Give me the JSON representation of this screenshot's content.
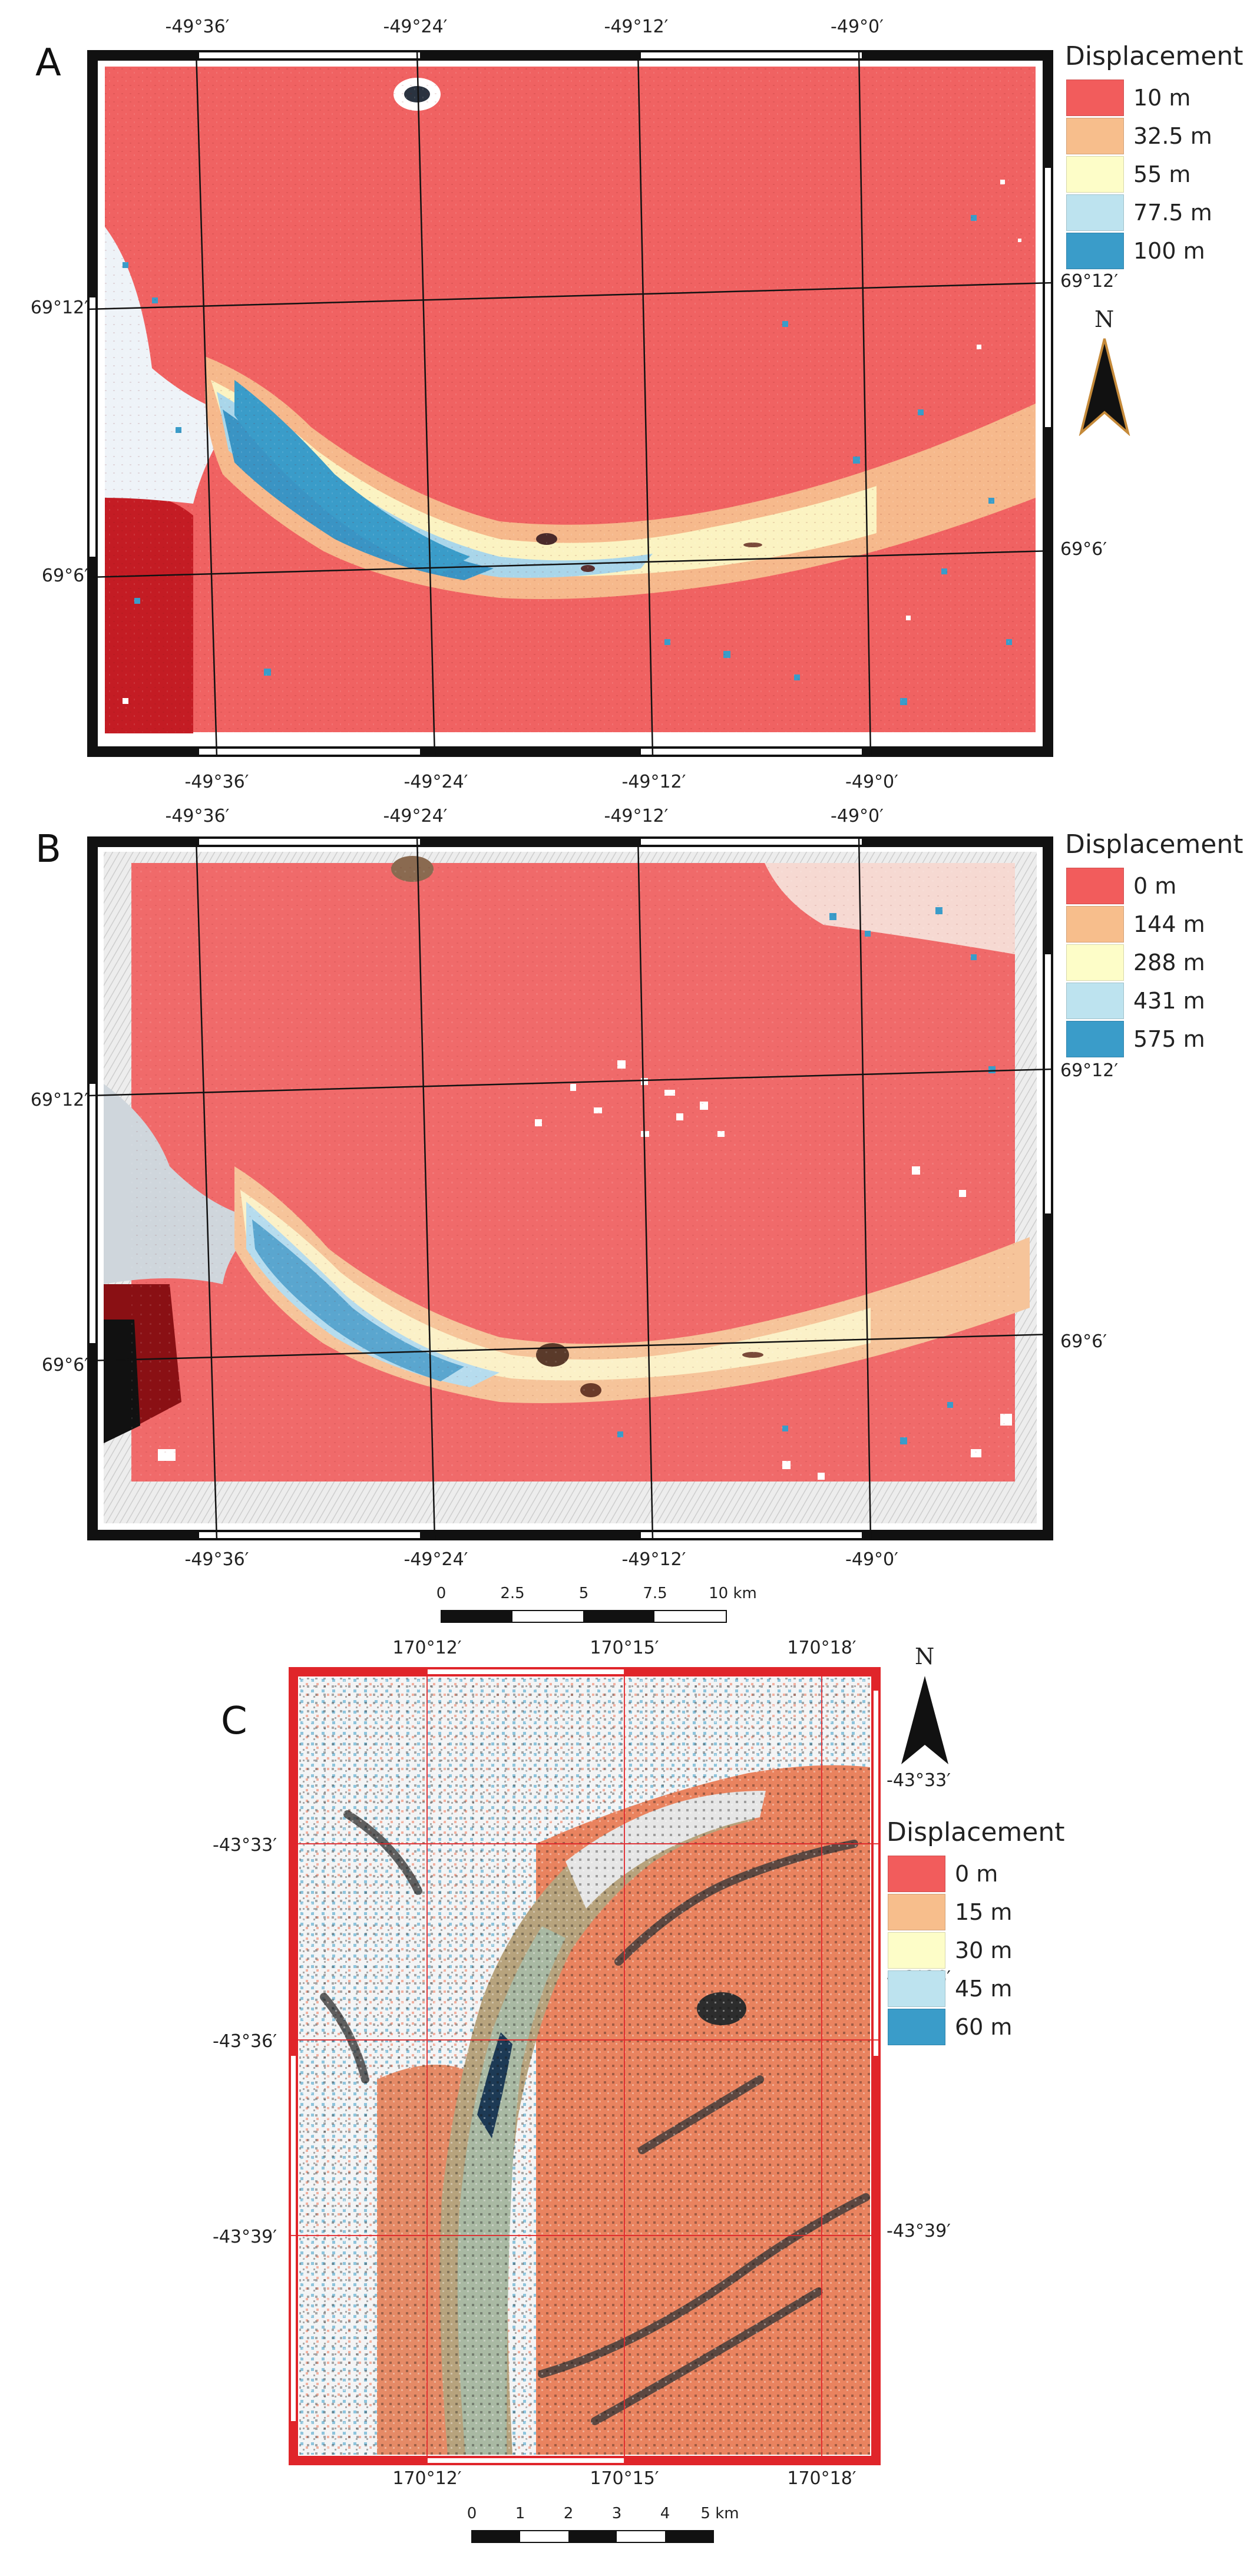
{
  "panels": [
    {
      "letter": "A",
      "lon_labels": [
        "-49°36′",
        "-49°24′",
        "-49°12′",
        "-49°0′"
      ],
      "lat_labels": [
        "69°12′",
        "69°6′"
      ],
      "legend": {
        "title": "Displacement",
        "entries": [
          {
            "label": "10 m",
            "color": "#f25c5c"
          },
          {
            "label": "32.5 m",
            "color": "#f7be8c"
          },
          {
            "label": "55 m",
            "color": "#fdfdc8"
          },
          {
            "label": "77.5 m",
            "color": "#bde3ef"
          },
          {
            "label": "100 m",
            "color": "#3a9cc9"
          }
        ]
      },
      "north_label": "N"
    },
    {
      "letter": "B",
      "lon_labels": [
        "-49°36′",
        "-49°24′",
        "-49°12′",
        "-49°0′"
      ],
      "lat_labels": [
        "69°12′",
        "69°6′"
      ],
      "legend": {
        "title": "Displacement",
        "entries": [
          {
            "label": "0 m",
            "color": "#f25c5c"
          },
          {
            "label": "144 m",
            "color": "#f7be8c"
          },
          {
            "label": "288 m",
            "color": "#fdfdc8"
          },
          {
            "label": "431 m",
            "color": "#bde3ef"
          },
          {
            "label": "575 m",
            "color": "#3a9cc9"
          }
        ]
      },
      "scalebar": {
        "ticks": [
          "0",
          "2.5",
          "5",
          "7.5",
          "10 km"
        ]
      }
    },
    {
      "letter": "C",
      "lon_labels": [
        "170°12′",
        "170°15′",
        "170°18′"
      ],
      "lat_labels": [
        "-43°33′",
        "-43°36′",
        "-43°39′"
      ],
      "legend": {
        "title": "Displacement",
        "entries": [
          {
            "label": "0 m",
            "color": "#f25c5c"
          },
          {
            "label": "15 m",
            "color": "#f7be8c"
          },
          {
            "label": "30 m",
            "color": "#fdfdc8"
          },
          {
            "label": "45 m",
            "color": "#bde3ef"
          },
          {
            "label": "60 m",
            "color": "#3a9cc9"
          }
        ]
      },
      "north_label": "N",
      "scalebar": {
        "ticks": [
          "0",
          "1",
          "2",
          "3",
          "4",
          "5 km"
        ]
      }
    }
  ]
}
